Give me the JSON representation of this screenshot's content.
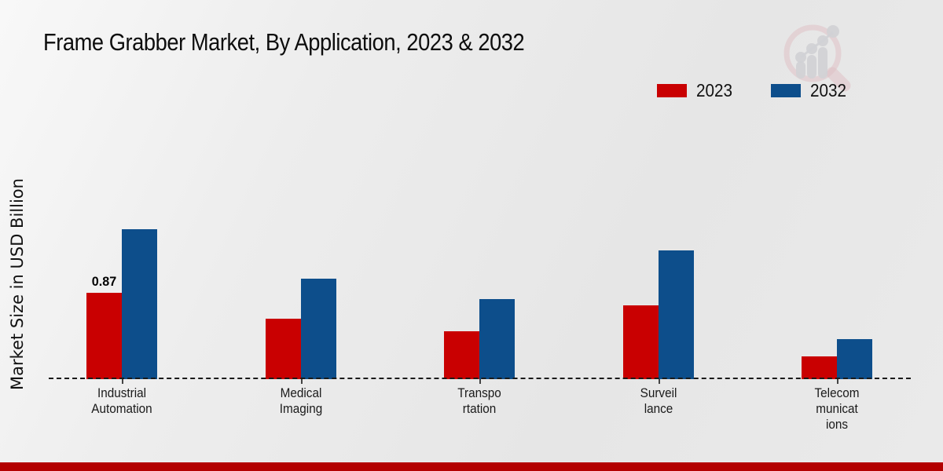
{
  "title": "Frame Grabber Market, By Application, 2023 & 2032",
  "y_axis_label": "Market Size in USD Billion",
  "legend": [
    {
      "label": "2023",
      "color": "#c90001"
    },
    {
      "label": "2032",
      "color": "#0d4e8b"
    }
  ],
  "colors": {
    "bar_2023": "#c90001",
    "bar_2032": "#0d4e8b",
    "footer_bar": "#b30000",
    "background": "#eaeaea",
    "baseline": "#1a1a1a"
  },
  "logo": "magnifier-bar-chart-watermark",
  "chart_data": {
    "type": "bar",
    "title": "Frame Grabber Market, By Application, 2023 & 2032",
    "ylabel": "Market Size in USD Billion",
    "xlabel": "",
    "categories": [
      "Industrial Automation",
      "Medical Imaging",
      "Transportation",
      "Surveillance",
      "Telecommunications"
    ],
    "category_label_lines": [
      [
        "Industrial",
        "Automation"
      ],
      [
        "Medical",
        "Imaging"
      ],
      [
        "Transpo",
        "rtation"
      ],
      [
        "Surveil",
        "lance"
      ],
      [
        "Telecom",
        "municat",
        "ions"
      ]
    ],
    "series": [
      {
        "name": "2023",
        "color": "#c90001",
        "values": [
          0.87,
          0.61,
          0.48,
          0.74,
          0.23
        ]
      },
      {
        "name": "2032",
        "color": "#0d4e8b",
        "values": [
          1.51,
          1.01,
          0.81,
          1.3,
          0.4
        ]
      }
    ],
    "value_labels": [
      {
        "category_index": 0,
        "series_index": 0,
        "text": "0.87"
      }
    ],
    "ylim": [
      0,
      1.6
    ],
    "grid": false,
    "baseline_style": "dashed",
    "legend_position": "top-right",
    "y_axis_ticks_visible": false
  }
}
